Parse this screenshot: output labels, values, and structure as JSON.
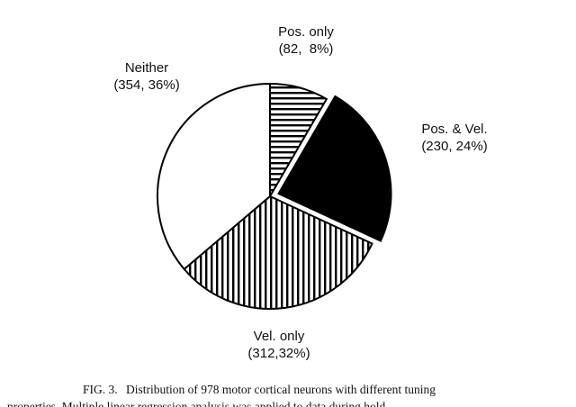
{
  "chart_data": {
    "type": "pie",
    "categories": [
      "Pos. only",
      "Pos. & Vel.",
      "Vel. only",
      "Neither"
    ],
    "values": [
      82,
      230,
      312,
      354
    ],
    "value_labels": [
      "(82,  8%)",
      "(230, 24%)",
      "(312,32%)",
      "(354, 36%)"
    ],
    "patterns": [
      "horizontal",
      "solid",
      "vertical",
      "none"
    ],
    "explode": [
      false,
      true,
      false,
      false
    ],
    "color": "#000000",
    "caption": {
      "label": "FIG. 3.",
      "text": "Distribution of 978 motor cortical neurons with different tuning",
      "text2": "properties. Multiple linear regression analysis was applied to data during hold"
    }
  }
}
